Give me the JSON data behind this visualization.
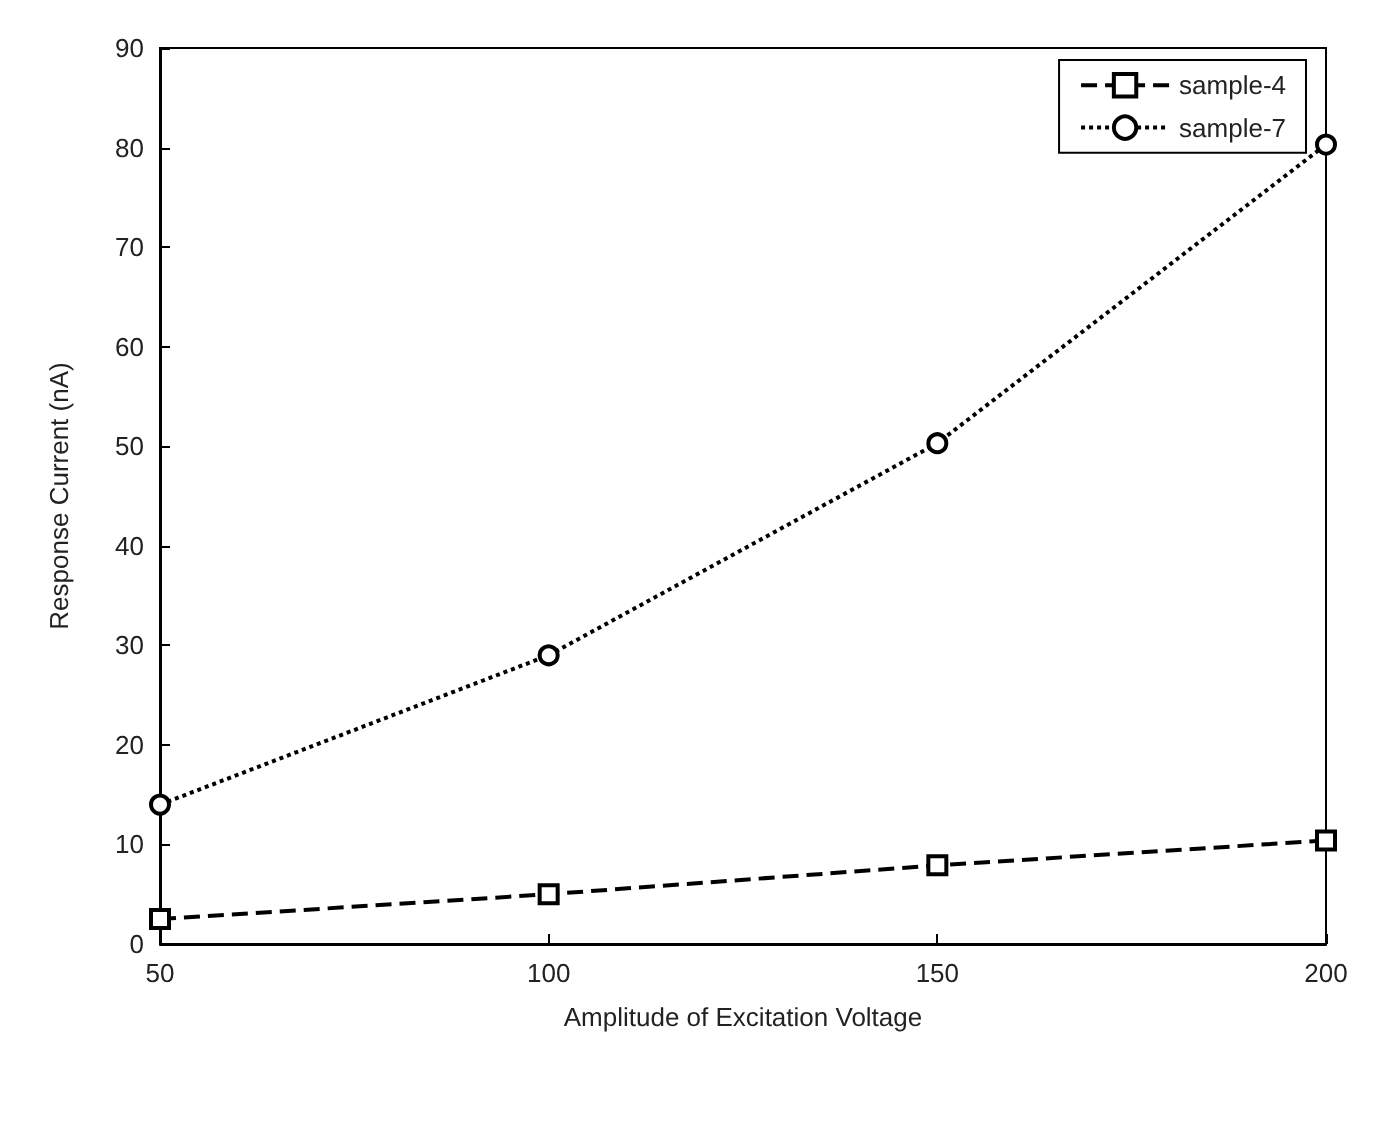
{
  "chart_data": {
    "type": "line",
    "xlabel": "Amplitude of Excitation Voltage",
    "ylabel": "Response Current (nA)",
    "x": [
      50,
      100,
      150,
      200
    ],
    "series": [
      {
        "name": "sample-4",
        "color": "#000000",
        "marker": "square",
        "line_style": "dashed",
        "values": [
          2.5,
          5,
          7.9,
          10.4
        ]
      },
      {
        "name": "sample-7",
        "color": "#000000",
        "marker": "circle",
        "line_style": "dotted",
        "values": [
          14,
          29,
          50.3,
          80.3
        ]
      }
    ],
    "xlim": [
      50,
      200
    ],
    "xticks": [
      50,
      100,
      150,
      200
    ],
    "ylim": [
      0,
      90
    ],
    "yticks": [
      0,
      10,
      20,
      30,
      40,
      50,
      60,
      70,
      80,
      90
    ],
    "grid": false,
    "legend": "top right"
  }
}
